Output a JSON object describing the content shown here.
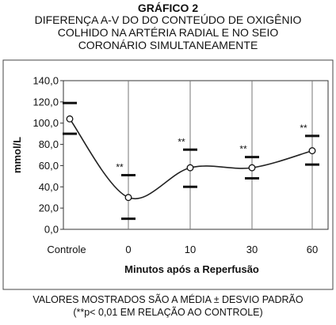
{
  "title_lines": [
    "GRÁFICO 2",
    "DIFERENÇA A-V DO DO CONTEÚDO DE OXIGÊNIO",
    "COLHIDO NA ARTÉRIA RADIAL E NO SEIO",
    "CORONÁRIO SIMULTANEAMENTE"
  ],
  "footnote_lines": [
    "VALORES MOSTRADOS SÃO A MÉDIA ± DESVIO PADRÃO",
    "(**p< 0,01 EM RELAÇÃO AO CONTROLE)"
  ],
  "chart_data": {
    "type": "line",
    "categories": [
      "Controle",
      "0",
      "10",
      "30",
      "60"
    ],
    "values": [
      104,
      30,
      58,
      58,
      74
    ],
    "error_upper": [
      119,
      51,
      75,
      68,
      88
    ],
    "error_lower": [
      90,
      10,
      40,
      48,
      61
    ],
    "significance": [
      "",
      "**",
      "**",
      "**",
      "**"
    ],
    "xlabel": "Minutos após a Reperfusão",
    "ylabel": "mmol/L",
    "ylim": [
      0,
      140
    ],
    "yticks": [
      "0,0",
      "20,0",
      "40,0",
      "60,0",
      "80,0",
      "100,0",
      "120,0",
      "140,0"
    ],
    "grid": "vertical lines at categories",
    "line_color": "#222222",
    "marker": "open-circle"
  }
}
